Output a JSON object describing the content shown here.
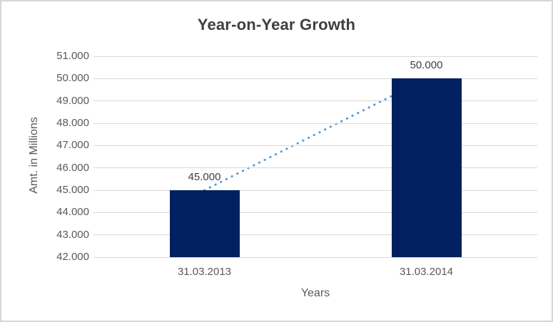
{
  "chart_data": {
    "type": "bar",
    "title": "Year-on-Year Growth",
    "xlabel": "Years",
    "ylabel": "Amt. in Millions",
    "categories": [
      "31.03.2013",
      "31.03.2014"
    ],
    "values": [
      45000,
      50000
    ],
    "value_labels": [
      "45.000",
      "50.000"
    ],
    "ylim": [
      42000,
      51000
    ],
    "ytick_step": 1000,
    "yticks": [
      {
        "value": 51000,
        "label": "51.000"
      },
      {
        "value": 50000,
        "label": "50.000"
      },
      {
        "value": 49000,
        "label": "49.000"
      },
      {
        "value": 48000,
        "label": "48.000"
      },
      {
        "value": 47000,
        "label": "47.000"
      },
      {
        "value": 46000,
        "label": "46.000"
      },
      {
        "value": 45000,
        "label": "45.000"
      },
      {
        "value": 44000,
        "label": "44.000"
      },
      {
        "value": 43000,
        "label": "43.000"
      },
      {
        "value": 42000,
        "label": "42.000"
      }
    ],
    "grid": true,
    "legend": "none",
    "trendline": {
      "style": "dotted",
      "from_value": 45000,
      "to_value": 50000,
      "color": "#5b9bd5"
    },
    "colors": {
      "bar_fill": "#002060",
      "gridline": "#d9d9d9",
      "title_text": "#3f3f3f",
      "axis_text": "#595959",
      "data_label_text": "#404040",
      "frame_border": "#d6d6d6",
      "background": "#ffffff"
    }
  }
}
